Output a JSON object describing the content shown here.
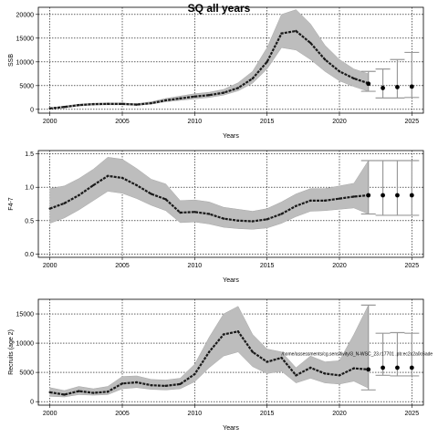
{
  "title": "SQ all years",
  "chart_data": [
    {
      "type": "line",
      "ylabel": "SSB",
      "xlabel": "Years",
      "xlim": [
        1999.2,
        2025.8
      ],
      "ylim": [
        -800,
        21500
      ],
      "xticks": [
        2000,
        2005,
        2010,
        2015,
        2020,
        2025
      ],
      "yticks": [
        0,
        5000,
        10000,
        15000,
        20000
      ],
      "grid": true,
      "x": [
        2000,
        2001,
        2002,
        2003,
        2004,
        2005,
        2006,
        2007,
        2008,
        2009,
        2010,
        2011,
        2012,
        2013,
        2014,
        2015,
        2016,
        2017,
        2018,
        2019,
        2020,
        2021,
        2022
      ],
      "y": [
        200,
        500,
        900,
        1100,
        1150,
        1150,
        1000,
        1300,
        1900,
        2300,
        2700,
        3000,
        3500,
        4500,
        6500,
        10000,
        16000,
        16500,
        14000,
        10500,
        8000,
        6500,
        5500
      ],
      "lower": [
        100,
        300,
        700,
        900,
        950,
        950,
        850,
        1100,
        1600,
        1900,
        2200,
        2500,
        3000,
        3900,
        5500,
        8500,
        13000,
        12500,
        10500,
        8000,
        6000,
        4800,
        3800
      ],
      "upper": [
        300,
        700,
        1100,
        1300,
        1350,
        1350,
        1200,
        1600,
        2300,
        2800,
        3300,
        3600,
        4200,
        5600,
        8000,
        13000,
        20000,
        21000,
        18000,
        13500,
        10500,
        8500,
        7500
      ],
      "projection": {
        "x": [
          2022,
          2023,
          2024,
          2025
        ],
        "y": [
          5400,
          4500,
          4700,
          4800
        ],
        "lower": [
          3800,
          2400,
          2400,
          2500
        ],
        "upper": [
          8000,
          8500,
          10500,
          12000
        ]
      }
    },
    {
      "type": "line",
      "ylabel": "F4-7",
      "xlabel": "Years",
      "xlim": [
        1999.2,
        2025.8
      ],
      "ylim": [
        -0.05,
        1.55
      ],
      "xticks": [
        2000,
        2005,
        2010,
        2015,
        2020,
        2025
      ],
      "yticks": [
        0.0,
        0.5,
        1.0,
        1.5
      ],
      "grid": true,
      "x": [
        2000,
        2001,
        2002,
        2003,
        2004,
        2005,
        2006,
        2007,
        2008,
        2009,
        2010,
        2011,
        2012,
        2013,
        2014,
        2015,
        2016,
        2017,
        2018,
        2019,
        2020,
        2021,
        2022
      ],
      "y": [
        0.68,
        0.76,
        0.88,
        1.03,
        1.17,
        1.14,
        1.03,
        0.9,
        0.82,
        0.62,
        0.63,
        0.6,
        0.53,
        0.5,
        0.49,
        0.52,
        0.6,
        0.72,
        0.8,
        0.8,
        0.83,
        0.86,
        0.88
      ],
      "lower": [
        0.46,
        0.54,
        0.66,
        0.8,
        0.94,
        0.91,
        0.83,
        0.73,
        0.65,
        0.47,
        0.48,
        0.45,
        0.4,
        0.38,
        0.37,
        0.39,
        0.46,
        0.56,
        0.64,
        0.65,
        0.67,
        0.69,
        0.6
      ],
      "upper": [
        0.98,
        1.02,
        1.13,
        1.27,
        1.45,
        1.42,
        1.28,
        1.12,
        1.05,
        0.8,
        0.81,
        0.78,
        0.7,
        0.67,
        0.64,
        0.68,
        0.78,
        0.9,
        0.98,
        0.98,
        1.02,
        1.06,
        1.4
      ],
      "projection": {
        "x": [
          2022,
          2023,
          2024,
          2025
        ],
        "y": [
          0.88,
          0.88,
          0.88,
          0.88
        ],
        "lower": [
          0.6,
          0.58,
          0.58,
          0.58
        ],
        "upper": [
          1.4,
          1.4,
          1.4,
          1.4
        ]
      }
    },
    {
      "type": "line",
      "ylabel": "Recruits (age 2)",
      "xlabel": "Years",
      "xlim": [
        1999.2,
        2025.8
      ],
      "ylim": [
        -600,
        17500
      ],
      "xticks": [
        2000,
        2005,
        2010,
        2015,
        2020,
        2025
      ],
      "yticks": [
        0,
        5000,
        10000,
        15000
      ],
      "grid": true,
      "x": [
        2000,
        2001,
        2002,
        2003,
        2004,
        2005,
        2006,
        2007,
        2008,
        2009,
        2010,
        2011,
        2012,
        2013,
        2014,
        2015,
        2016,
        2017,
        2018,
        2019,
        2020,
        2021,
        2022
      ],
      "y": [
        1600,
        1200,
        1800,
        1500,
        1700,
        3100,
        3300,
        2800,
        2700,
        3000,
        4700,
        8500,
        11500,
        12000,
        8500,
        6800,
        7500,
        4500,
        5800,
        4800,
        4500,
        5700,
        5500
      ],
      "lower": [
        900,
        800,
        1200,
        1100,
        1200,
        2200,
        2400,
        2100,
        2000,
        2200,
        3400,
        5800,
        7800,
        8500,
        6000,
        4800,
        5200,
        3200,
        4000,
        3200,
        3000,
        3500,
        2300
      ],
      "upper": [
        2400,
        1900,
        2600,
        2200,
        2600,
        4300,
        4400,
        3800,
        3700,
        4000,
        6400,
        11000,
        15000,
        16300,
        11500,
        9000,
        8500,
        5800,
        7800,
        6800,
        7000,
        11500,
        16500
      ],
      "projection": {
        "x": [
          2022,
          2023,
          2024,
          2025
        ],
        "y": [
          5500,
          5800,
          5800,
          5800
        ],
        "lower": [
          2000,
          4500,
          4400,
          4400
        ],
        "upper": [
          16500,
          11700,
          11800,
          11700
        ]
      },
      "annotation": "/home/assessments/cg.sensitivity/3_N-WSC_23.r17701 .pb:ec2c2a0c6ade"
    }
  ]
}
